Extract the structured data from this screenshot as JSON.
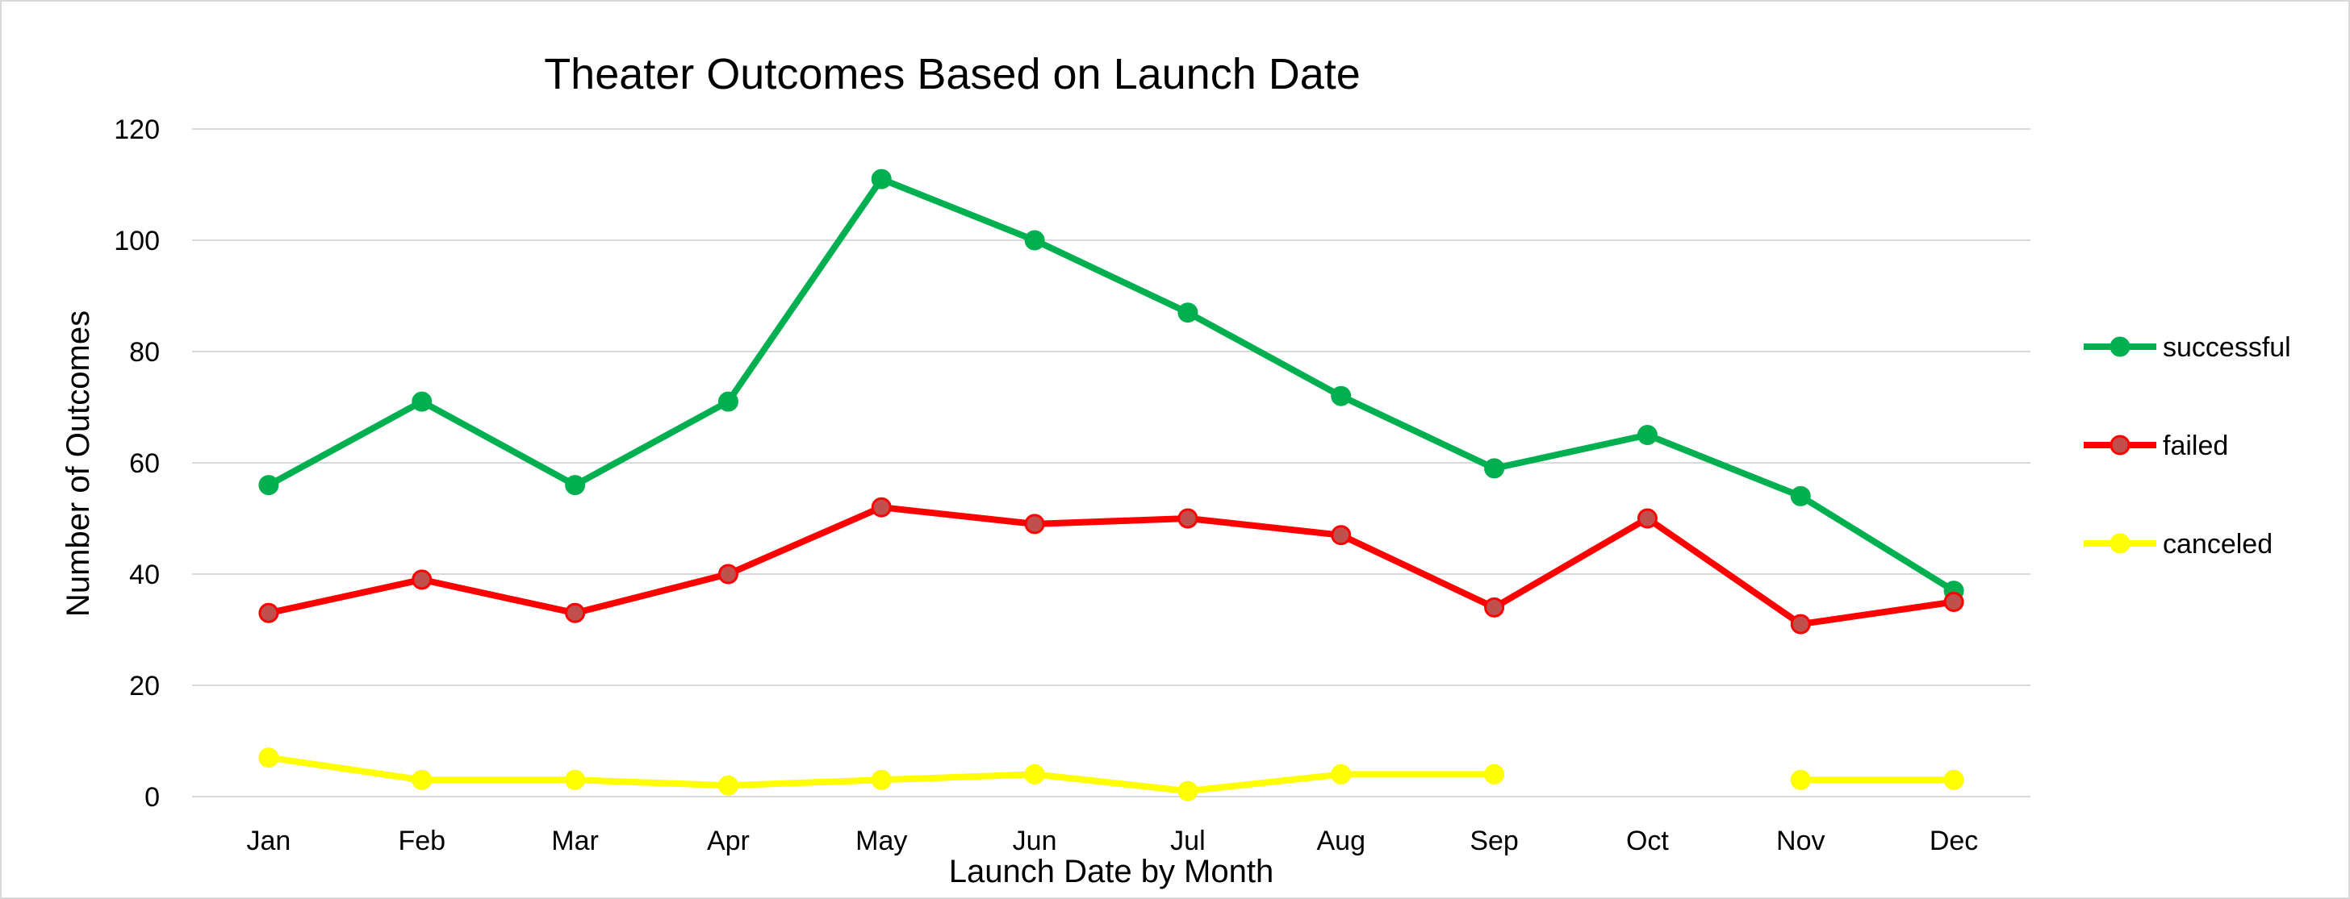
{
  "chart_data": {
    "type": "line",
    "title": "Theater Outcomes Based on Launch Date",
    "xlabel": "Launch Date by Month",
    "ylabel": "Number of Outcomes",
    "categories": [
      "Jan",
      "Feb",
      "Mar",
      "Apr",
      "May",
      "Jun",
      "Jul",
      "Aug",
      "Sep",
      "Oct",
      "Nov",
      "Dec"
    ],
    "ylim": [
      0,
      120
    ],
    "yticks": [
      0,
      20,
      40,
      60,
      80,
      100,
      120
    ],
    "grid": true,
    "legend_position": "right",
    "series": [
      {
        "name": "successful",
        "color": "#00B050",
        "marker_fill": "#00B050",
        "values": [
          56,
          71,
          56,
          71,
          111,
          100,
          87,
          72,
          59,
          65,
          54,
          37
        ]
      },
      {
        "name": "failed",
        "color": "#FF0000",
        "marker_fill": "#C0504D",
        "values": [
          33,
          39,
          33,
          40,
          52,
          49,
          50,
          47,
          34,
          50,
          31,
          35
        ]
      },
      {
        "name": "canceled",
        "color": "#FFFF00",
        "marker_fill": "#FFFF00",
        "values": [
          7,
          3,
          3,
          2,
          3,
          4,
          1,
          4,
          4,
          null,
          3,
          3
        ]
      }
    ]
  }
}
